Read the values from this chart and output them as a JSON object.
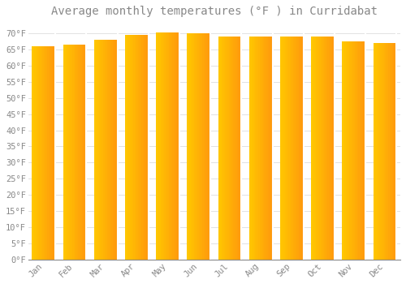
{
  "title": "Average monthly temperatures (°F ) in Curridabat",
  "months": [
    "Jan",
    "Feb",
    "Mar",
    "Apr",
    "May",
    "Jun",
    "Jul",
    "Aug",
    "Sep",
    "Oct",
    "Nov",
    "Dec"
  ],
  "values": [
    66.0,
    66.5,
    68.0,
    69.5,
    70.2,
    70.0,
    69.0,
    69.0,
    69.0,
    69.0,
    67.5,
    67.0
  ],
  "bar_color_left": "#FFB800",
  "bar_color_right": "#FFA500",
  "bar_highlight": "#FFD060",
  "background_color": "#FFFFFF",
  "grid_color": "#DDDDDD",
  "text_color": "#888888",
  "ylim": [
    0,
    73
  ],
  "yticks": [
    0,
    5,
    10,
    15,
    20,
    25,
    30,
    35,
    40,
    45,
    50,
    55,
    60,
    65,
    70
  ],
  "ytick_labels": [
    "0°F",
    "5°F",
    "10°F",
    "15°F",
    "20°F",
    "25°F",
    "30°F",
    "35°F",
    "40°F",
    "45°F",
    "50°F",
    "55°F",
    "60°F",
    "65°F",
    "70°F"
  ],
  "title_fontsize": 10,
  "tick_fontsize": 7.5,
  "font_family": "monospace",
  "bar_width": 0.75
}
